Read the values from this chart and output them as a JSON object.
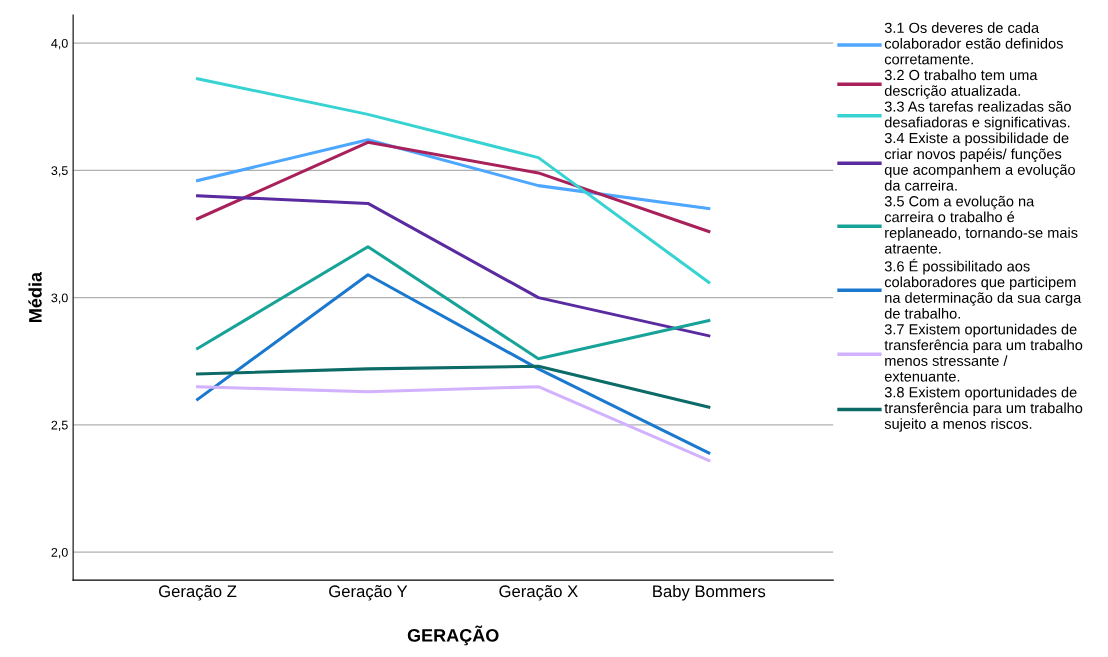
{
  "chart_data": {
    "type": "line",
    "xlabel": "GERAÇÃO",
    "ylabel": "Média",
    "categories": [
      "Geração Z",
      "Geração Y",
      "Geração X",
      "Baby Bommers"
    ],
    "ylim": [
      1.89,
      4.11
    ],
    "yticks": [
      {
        "value": 2.0,
        "label": "2,0"
      },
      {
        "value": 2.5,
        "label": "2,5"
      },
      {
        "value": 3.0,
        "label": "3,0"
      },
      {
        "value": 3.5,
        "label": "3,5"
      },
      {
        "value": 4.0,
        "label": "4,0"
      }
    ],
    "grid": "y",
    "legend": "right",
    "marker": "none",
    "line_style": "solid",
    "series": [
      {
        "name": "3.1 Os deveres de cada\ncolaborador estão definidos\ncorretamente.",
        "color": "#4da6ff",
        "values": [
          3.46,
          3.62,
          3.44,
          3.35
        ]
      },
      {
        "name": "3.2 O trabalho tem uma\ndescrição atualizada.",
        "color": "#a8215a",
        "values": [
          3.31,
          3.61,
          3.49,
          3.26
        ]
      },
      {
        "name": "3.3 As tarefas realizadas são\ndesafiadoras e significativas.",
        "color": "#37d3d3",
        "values": [
          3.86,
          3.72,
          3.55,
          3.06
        ]
      },
      {
        "name": "3.4 Existe a possibilidade de\ncriar novos papéis/ funções\nque acompanhem a evolução\nda carreira.",
        "color": "#5a2ba0",
        "values": [
          3.4,
          3.37,
          3.0,
          2.85
        ]
      },
      {
        "name": "3.5 Com a evolução na\ncarreira o trabalho é\nreplaneado, tornando-se mais\natraente.",
        "color": "#17a398",
        "values": [
          2.8,
          3.2,
          2.76,
          2.91
        ]
      },
      {
        "name": "3.6 É possibilitado aos\ncolaboradores que participem\nna determinação da sua carga\nde trabalho.",
        "color": "#1a78cf",
        "values": [
          2.6,
          3.09,
          2.72,
          2.39
        ]
      },
      {
        "name": "3.7 Existem oportunidades de\ntransferência para um trabalho\nmenos stressante /\nextenuante.",
        "color": "#d2b2ff",
        "values": [
          2.65,
          2.63,
          2.65,
          2.36
        ]
      },
      {
        "name": "3.8 Existem oportunidades de\ntransferência para um trabalho\nsujeito a menos riscos.",
        "color": "#0c6b67",
        "values": [
          2.7,
          2.72,
          2.73,
          2.57
        ]
      }
    ]
  }
}
